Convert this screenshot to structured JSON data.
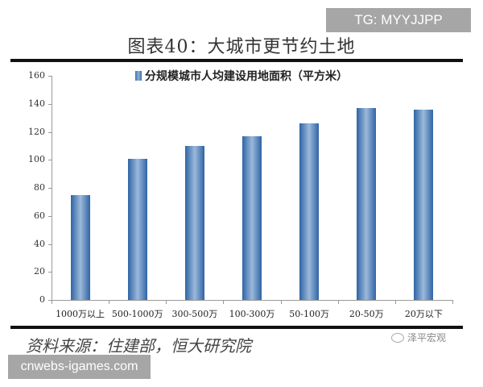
{
  "watermarks": {
    "top_right": "TG: MYYJJPP",
    "bottom_left": "cnwebs-igames.com"
  },
  "title": "图表40：大城市更节约土地",
  "source": "资料来源：住建部，恒大研究院",
  "brand": {
    "icon": "wechat-icon",
    "label": "泽平宏观"
  },
  "chart_data": {
    "type": "bar",
    "title": "图表40：大城市更节约土地",
    "legend": [
      "分规模城市人均建设用地面积（平方米）"
    ],
    "legend_position": "top",
    "categories": [
      "1000万以上",
      "500-1000万",
      "300-500万",
      "100-300万",
      "50-100万",
      "20-50万",
      "20万以下"
    ],
    "series": [
      {
        "name": "分规模城市人均建设用地面积（平方米）",
        "values": [
          75,
          101,
          110,
          117,
          126,
          137,
          136
        ]
      }
    ],
    "xlabel": "",
    "ylabel": "",
    "ylim": [
      0,
      160
    ],
    "yticks": [
      "0",
      "20",
      "40",
      "60",
      "80",
      "100",
      "120",
      "140",
      "160"
    ],
    "grid": false,
    "bar_color": "#2f64a6"
  }
}
